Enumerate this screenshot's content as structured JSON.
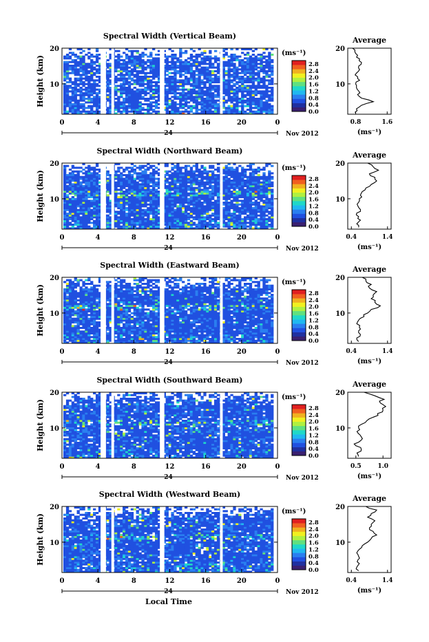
{
  "footer": {
    "xlabel": "Local Time"
  },
  "colorbar": {
    "unit": "(ms⁻¹)",
    "ticks": [
      "2.8",
      "2.4",
      "2.0",
      "1.6",
      "1.2",
      "0.8",
      "0.4",
      "0.0"
    ],
    "range": [
      0,
      3.0
    ],
    "colors": [
      "#3a2070",
      "#2030a0",
      "#2050e0",
      "#2a7ff0",
      "#20b8f0",
      "#20d8c8",
      "#60e080",
      "#b0f040",
      "#f0f020",
      "#f0b020",
      "#f06020",
      "#e02020"
    ]
  },
  "chart_data": [
    {
      "type": "heatmap",
      "title": "Spectral Width (Vertical Beam)",
      "ylabel": "Height (km)",
      "ylim": [
        1.5,
        20
      ],
      "yticks": [
        10,
        20
      ],
      "xlim": [
        0,
        24
      ],
      "xticks": [
        "0",
        "4",
        "8",
        "12",
        "16",
        "20",
        "0"
      ],
      "date_day": "24",
      "date_month": "Nov 2012",
      "gaps_hours": [
        [
          4.3,
          4.9
        ],
        [
          5.5,
          5.8
        ],
        [
          10.9,
          11.4
        ],
        [
          17.6,
          17.9
        ]
      ],
      "profile": {
        "title": "Average",
        "xlabel": "(ms⁻¹)",
        "xticks": [
          "0.8",
          "1.6"
        ],
        "xlim": [
          0.6,
          1.7
        ],
        "ylim": [
          1.5,
          20
        ],
        "heights": [
          2,
          3,
          4,
          5,
          6,
          7,
          8,
          9,
          10,
          11,
          12,
          13,
          14,
          15,
          16,
          17,
          18,
          19,
          20
        ],
        "values": [
          0.78,
          0.82,
          0.95,
          1.25,
          0.95,
          0.85,
          0.88,
          0.82,
          0.8,
          0.9,
          0.85,
          0.82,
          0.9,
          0.88,
          0.95,
          0.9,
          0.85,
          0.78,
          0.72
        ]
      }
    },
    {
      "type": "heatmap",
      "title": "Spectral Width (Northward Beam)",
      "ylabel": "Height (km)",
      "ylim": [
        1.5,
        20
      ],
      "yticks": [
        10,
        20
      ],
      "xlim": [
        0,
        24
      ],
      "xticks": [
        "0",
        "4",
        "8",
        "12",
        "16",
        "20",
        "0"
      ],
      "date_day": "24",
      "date_month": "Nov 2012",
      "gaps_hours": [
        [
          4.3,
          4.9
        ],
        [
          5.5,
          5.8
        ],
        [
          10.9,
          11.4
        ],
        [
          17.6,
          17.9
        ]
      ],
      "profile": {
        "title": "Average",
        "xlabel": "(ms⁻¹)",
        "xticks": [
          "0.4",
          "1.4"
        ],
        "xlim": [
          0.3,
          1.5
        ],
        "ylim": [
          1.5,
          20
        ],
        "heights": [
          2,
          3,
          4,
          5,
          6,
          7,
          8,
          9,
          10,
          11,
          12,
          13,
          14,
          15,
          16,
          17,
          18,
          19,
          20
        ],
        "values": [
          0.6,
          0.55,
          0.65,
          0.6,
          0.55,
          0.65,
          0.58,
          0.6,
          0.62,
          0.65,
          0.7,
          0.8,
          0.95,
          1.1,
          1.05,
          0.9,
          1.15,
          1.0,
          0.85
        ]
      }
    },
    {
      "type": "heatmap",
      "title": "Spectral Width (Eastward Beam)",
      "ylabel": "Height (km)",
      "ylim": [
        1.5,
        20
      ],
      "yticks": [
        10,
        20
      ],
      "xlim": [
        0,
        24
      ],
      "xticks": [
        "0",
        "4",
        "8",
        "12",
        "16",
        "20",
        "0"
      ],
      "date_day": "24",
      "date_month": "Nov 2012",
      "gaps_hours": [
        [
          4.3,
          4.9
        ],
        [
          5.5,
          5.8
        ],
        [
          10.9,
          11.4
        ],
        [
          17.6,
          17.9
        ]
      ],
      "profile": {
        "title": "Average",
        "xlabel": "(ms⁻¹)",
        "xticks": [
          "0.4",
          "1.4"
        ],
        "xlim": [
          0.3,
          1.5
        ],
        "ylim": [
          1.5,
          20
        ],
        "heights": [
          2,
          3,
          4,
          5,
          6,
          7,
          8,
          9,
          10,
          11,
          12,
          13,
          14,
          15,
          16,
          17,
          18,
          19,
          20
        ],
        "values": [
          0.6,
          0.55,
          0.65,
          0.6,
          0.62,
          0.55,
          0.6,
          0.75,
          0.85,
          0.95,
          1.2,
          1.05,
          0.95,
          1.0,
          1.1,
          0.9,
          0.95,
          0.8,
          0.7
        ]
      }
    },
    {
      "type": "heatmap",
      "title": "Spectral Width (Southward Beam)",
      "ylabel": "Height (km)",
      "ylim": [
        1.5,
        20
      ],
      "yticks": [
        10,
        20
      ],
      "xlim": [
        0,
        24
      ],
      "xticks": [
        "0",
        "4",
        "8",
        "12",
        "16",
        "20",
        "0"
      ],
      "date_day": "24",
      "date_month": "Nov 2012",
      "gaps_hours": [
        [
          4.3,
          4.9
        ],
        [
          5.5,
          5.8
        ],
        [
          10.9,
          11.4
        ],
        [
          17.6,
          17.9
        ]
      ],
      "profile": {
        "title": "Average",
        "xlabel": "(ms⁻¹)",
        "xticks": [
          "0.5",
          "1.0"
        ],
        "xlim": [
          0.35,
          1.15
        ],
        "ylim": [
          1.5,
          20
        ],
        "heights": [
          2,
          3,
          4,
          5,
          6,
          7,
          8,
          9,
          10,
          11,
          12,
          13,
          14,
          15,
          16,
          17,
          18,
          19,
          20
        ],
        "values": [
          0.55,
          0.52,
          0.6,
          0.5,
          0.55,
          0.62,
          0.58,
          0.52,
          0.55,
          0.6,
          0.7,
          0.82,
          0.9,
          1.0,
          1.05,
          0.95,
          1.02,
          0.85,
          0.65
        ]
      }
    },
    {
      "type": "heatmap",
      "title": "Spectral Width (Westward Beam)",
      "ylabel": "Height (km)",
      "ylim": [
        1.5,
        20
      ],
      "yticks": [
        10,
        20
      ],
      "xlim": [
        0,
        24
      ],
      "xticks": [
        "0",
        "4",
        "8",
        "12",
        "16",
        "20",
        "0"
      ],
      "date_day": "24",
      "date_month": "Nov 2012",
      "gaps_hours": [
        [
          4.3,
          4.9
        ],
        [
          5.5,
          5.8
        ],
        [
          10.9,
          11.4
        ],
        [
          17.6,
          17.9
        ]
      ],
      "profile": {
        "title": "Average",
        "xlabel": "(ms⁻¹)",
        "xticks": [
          "0.4",
          "1.4"
        ],
        "xlim": [
          0.3,
          1.5
        ],
        "ylim": [
          1.5,
          20
        ],
        "heights": [
          2,
          3,
          4,
          5,
          6,
          7,
          8,
          9,
          10,
          11,
          12,
          13,
          14,
          15,
          16,
          17,
          18,
          19,
          20
        ],
        "values": [
          0.6,
          0.55,
          0.62,
          0.58,
          0.6,
          0.55,
          0.62,
          0.7,
          0.85,
          0.95,
          1.1,
          1.0,
          0.9,
          0.95,
          1.05,
          0.85,
          0.95,
          1.1,
          0.8
        ]
      }
    }
  ]
}
